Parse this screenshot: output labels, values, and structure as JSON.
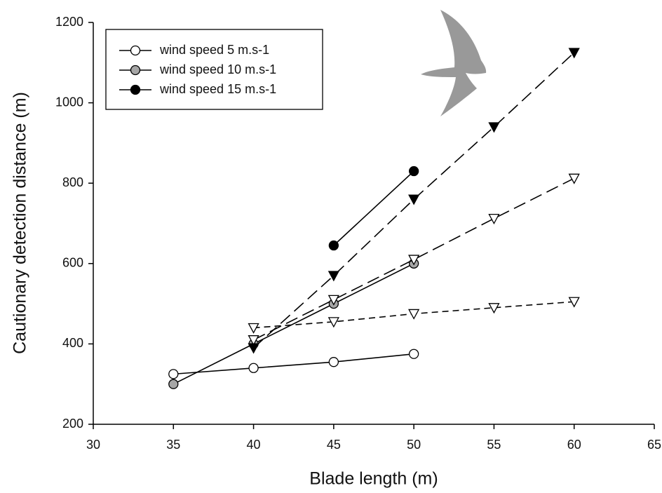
{
  "chart_data": {
    "type": "line",
    "x_label": "Blade length (m)",
    "y_label": "Cautionary detection distance (m)",
    "xlim": [
      30,
      65
    ],
    "xticks": [
      30,
      35,
      40,
      45,
      50,
      55,
      60,
      65
    ],
    "ylim": [
      200,
      1200
    ],
    "yticks": [
      200,
      400,
      600,
      800,
      1000,
      1200
    ],
    "legend": "upper-left",
    "series": [
      {
        "name": "wind speed 5 m.s-1",
        "color": "#ffffff",
        "marker": "circle",
        "line": "solid",
        "x": [
          35,
          40,
          45,
          50
        ],
        "values": [
          325,
          340,
          355,
          375
        ]
      },
      {
        "name": "wind speed 10 m.s-1",
        "color": "#a6a6a6",
        "marker": "circle",
        "line": "solid",
        "x": [
          35,
          40,
          45,
          50
        ],
        "values": [
          300,
          400,
          500,
          600
        ]
      },
      {
        "name": "wind speed 15 m.s-1",
        "color": "#000000",
        "marker": "circle",
        "line": "solid",
        "x": [
          45,
          50
        ],
        "values": [
          645,
          830
        ]
      },
      {
        "color": "#ffffff",
        "marker": "triangle-down",
        "line": "short-dash",
        "x": [
          40,
          45,
          50,
          55,
          60
        ],
        "values": [
          440,
          455,
          475,
          490,
          505
        ]
      },
      {
        "color": "#ffffff",
        "marker": "triangle-down",
        "line": "long-dash",
        "x": [
          40,
          45,
          50,
          55,
          60
        ],
        "values": [
          410,
          510,
          610,
          712,
          812
        ]
      },
      {
        "color": "#000000",
        "marker": "triangle-down",
        "line": "long-dash",
        "x": [
          40,
          45,
          50,
          55,
          60
        ],
        "values": [
          390,
          570,
          760,
          940,
          1125
        ]
      }
    ]
  }
}
